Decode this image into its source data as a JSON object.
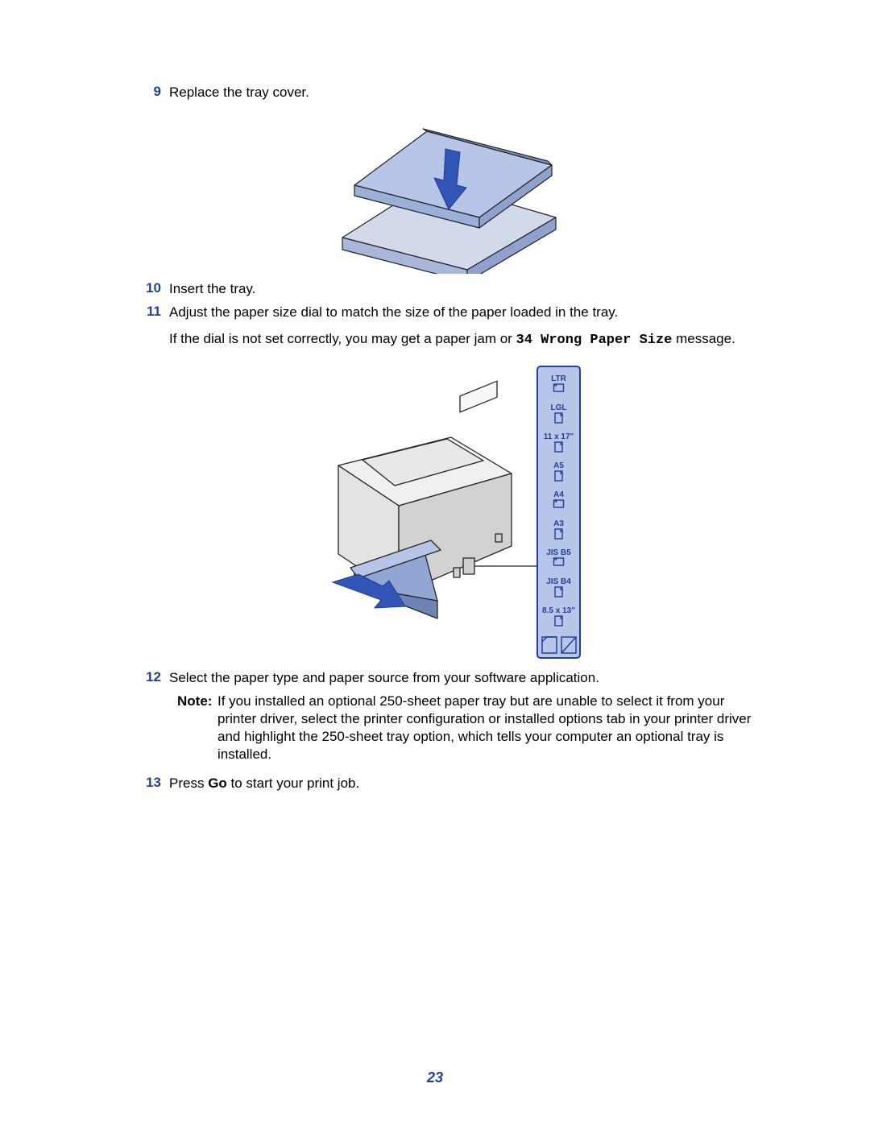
{
  "page_number": "23",
  "accent_color": "#20419a",
  "text_color": "#000000",
  "steps": {
    "s9": {
      "num": "9",
      "text": "Replace the tray cover."
    },
    "s10": {
      "num": "10",
      "text": "Insert the tray."
    },
    "s11": {
      "num": "11",
      "text": "Adjust the paper size dial to match the size of the paper loaded in the tray.",
      "extra_a": "If the dial is not set correctly, you may get a paper jam or ",
      "extra_code": "34 Wrong Paper Size",
      "extra_b": " message."
    },
    "s12": {
      "num": "12",
      "text": "Select the paper type and paper source from your software application."
    },
    "s13": {
      "num": "13",
      "a": "Press ",
      "bold": "Go",
      "b": " to start your print job."
    }
  },
  "note": {
    "label": "Note:",
    "text": " If you installed an optional 250-sheet paper tray but are unable to select it from your printer driver, select the printer configuration or installed options tab in your printer driver and highlight the 250-sheet tray option, which tells your computer an optional tray is installed."
  },
  "paper_sizes": {
    "items": [
      "LTR",
      "LGL",
      "11 x 17\"",
      "A5",
      "A4",
      "A3",
      "JIS B5",
      "JIS B4",
      "8.5 x 13\""
    ],
    "strip_fill": "#b7c5e8",
    "strip_stroke": "#20419a"
  },
  "figure_colors": {
    "tray_fill": "#a9b8da",
    "tray_mid": "#8ea2cd",
    "tray_dark": "#6d84b4",
    "arrow": "#3156b8",
    "printer_body": "#e8e8e8",
    "printer_shadow": "#c8c8c8",
    "outline": "#222222"
  }
}
